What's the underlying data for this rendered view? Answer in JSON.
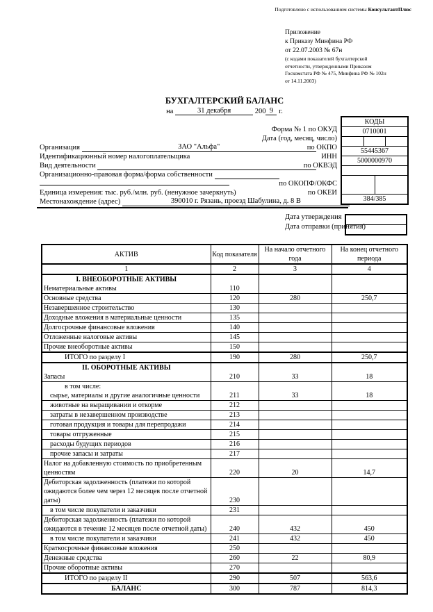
{
  "consultant": {
    "prefix": "Подготовлено с использованием системы ",
    "brand": "КонсультантПлюс"
  },
  "appendix": {
    "line1": "Приложение",
    "line2": "к Приказу Минфина РФ",
    "line3": "от 22.07.2003 № 67н",
    "small1": "(с кодами показателей бухгалтерской",
    "small2": "отчетности, утвержденными Приказом",
    "small3": "Госкомстата РФ № 475, Минфина РФ № 102н",
    "small4": "от 14.11.2003)"
  },
  "title": {
    "text": "БУХГАЛТЕРСКИЙ БАЛАНС",
    "prefix": "на",
    "date": "31 декабря",
    "century": "200",
    "year": "9",
    "suffix": "г."
  },
  "labels": {
    "form": "Форма № 1 по ОКУД",
    "date": "Дата (год, месяц, число)",
    "okpo": "по ОКПО",
    "inn": "ИНН",
    "okved": "по ОКВЭД",
    "okopf": "по ОКОПФ/ОКФС",
    "okei": "по ОКЕИ",
    "org": "Организация",
    "taxpayer": "Идентификационный номер налогоплательщика",
    "activity": "Вид деятельности",
    "legal_form": "Организационно-правовая форма/форма собственности",
    "unit": "Единица измерения: тыс. руб./млн. руб. (ненужное зачеркнуть)",
    "address": "Местонахождение (адрес)",
    "date_approved": "Дата утверждения",
    "date_sent": "Дата отправки (принятия)"
  },
  "values": {
    "org": "ЗАО \"Альфа\"",
    "address": "390010 г. Рязань, проезд Шабулина, д. 8 В"
  },
  "codes": {
    "header": "КОДЫ",
    "okud": "0710001",
    "okpo": "55445367",
    "inn": "5000000970",
    "okved": "",
    "okei": "384/385"
  },
  "table": {
    "headers": [
      "АКТИВ",
      "Код показателя",
      "На начало отчетного года",
      "На конец отчетного периода"
    ],
    "col_numbers": [
      "1",
      "2",
      "3",
      "4"
    ],
    "rows": [
      {
        "type": "section",
        "section": "I. ВНЕОБОРОТНЫЕ АКТИВЫ",
        "label": "Нематериальные активы",
        "code": "110",
        "begin": "",
        "end": ""
      },
      {
        "type": "item",
        "label": "Основные средства",
        "code": "120",
        "begin": "280",
        "end": "250,7"
      },
      {
        "type": "item",
        "label": "Незавершенное строительство",
        "code": "130",
        "begin": "",
        "end": ""
      },
      {
        "type": "item",
        "label": "Доходные вложения в материальные ценности",
        "code": "135",
        "begin": "",
        "end": ""
      },
      {
        "type": "item",
        "label": "Долгосрочные финансовые вложения",
        "code": "140",
        "begin": "",
        "end": ""
      },
      {
        "type": "item",
        "label": "Отложенные налоговые активы",
        "code": "145",
        "begin": "",
        "end": ""
      },
      {
        "type": "item",
        "label": "Прочие внеоборотные активы",
        "code": "150",
        "begin": "",
        "end": ""
      },
      {
        "type": "total",
        "label": "ИТОГО по разделу I",
        "code": "190",
        "begin": "280",
        "end": "250,7"
      },
      {
        "type": "section",
        "section": "II. ОБОРОТНЫЕ АКТИВЫ",
        "label": "Запасы",
        "code": "210",
        "begin": "33",
        "end": "18"
      },
      {
        "type": "sub2",
        "pre": "в том числе:",
        "label": "сырье, материалы и другие аналогичные ценности",
        "code": "211",
        "begin": "33",
        "end": "18"
      },
      {
        "type": "sub",
        "label": "животные на выращивании и откорме",
        "code": "212",
        "begin": "",
        "end": ""
      },
      {
        "type": "sub",
        "label": "затраты в незавершенном производстве",
        "code": "213",
        "begin": "",
        "end": ""
      },
      {
        "type": "sub",
        "label": "готовая продукция и товары для перепродажи",
        "code": "214",
        "begin": "",
        "end": ""
      },
      {
        "type": "sub",
        "label": "товары отгруженные",
        "code": "215",
        "begin": "",
        "end": ""
      },
      {
        "type": "sub",
        "label": "расходы будущих периодов",
        "code": "216",
        "begin": "",
        "end": ""
      },
      {
        "type": "sub",
        "label": "прочие запасы и затраты",
        "code": "217",
        "begin": "",
        "end": ""
      },
      {
        "type": "item",
        "label": "Налог на добавленную стоимость по приобретенным ценностям",
        "code": "220",
        "begin": "20",
        "end": "14,7"
      },
      {
        "type": "item",
        "label": "Дебиторская задолженность (платежи по которой ожидаются более чем через 12 месяцев после отчетной даты)",
        "code": "230",
        "begin": "",
        "end": ""
      },
      {
        "type": "sub",
        "label": "в том числе покупатели и заказчики",
        "code": "231",
        "begin": "",
        "end": ""
      },
      {
        "type": "item",
        "label": "Дебиторская задолженность (платежи по которой ожидаются в течение 12 месяцев после отчетной даты)",
        "code": "240",
        "begin": "432",
        "end": "450"
      },
      {
        "type": "sub",
        "label": "в том числе покупатели и заказчики",
        "code": "241",
        "begin": "432",
        "end": "450"
      },
      {
        "type": "item",
        "label": "Краткосрочные финансовые вложения",
        "code": "250",
        "begin": "",
        "end": ""
      },
      {
        "type": "item",
        "label": "Денежные средства",
        "code": "260",
        "begin": "22",
        "end": "80,9"
      },
      {
        "type": "item",
        "label": "Прочие оборотные активы",
        "code": "270",
        "begin": "",
        "end": ""
      },
      {
        "type": "total",
        "label": "ИТОГО по разделу II",
        "code": "290",
        "begin": "507",
        "end": "563,6"
      },
      {
        "type": "balance",
        "label": "БАЛАНС",
        "code": "300",
        "begin": "787",
        "end": "814,3"
      }
    ]
  }
}
